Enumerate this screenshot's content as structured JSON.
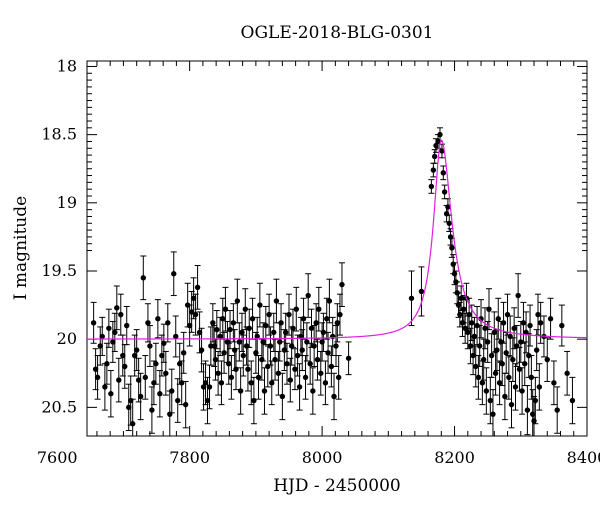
{
  "chart_data": {
    "type": "scatter",
    "title": "OGLE-2018-BLG-0301",
    "xlabel": "HJD - 2450000",
    "ylabel": "I magnitude",
    "xlim": [
      7645,
      8400
    ],
    "ylim": [
      20.71,
      17.96
    ],
    "y_inverted": true,
    "x_ticks": [
      7600,
      7800,
      8000,
      8200,
      8400
    ],
    "x_tick_labels": [
      "7600",
      "7800",
      "8000",
      "8200",
      "8400"
    ],
    "y_ticks": [
      18,
      18.5,
      19,
      19.5,
      20,
      20.5
    ],
    "y_tick_labels": [
      "18",
      "18.5",
      "19",
      "19.5",
      "20",
      "20.5"
    ],
    "grid": false,
    "colors": {
      "points": "#000000",
      "model": "#e020e0"
    },
    "series": [
      {
        "kind": "points_with_errorbars",
        "points": [
          [
            7655,
            19.88,
            0.15
          ],
          [
            7658,
            20.22,
            0.15
          ],
          [
            7661,
            20.28,
            0.16
          ],
          [
            7665,
            20.05,
            0.14
          ],
          [
            7668,
            19.98,
            0.14
          ],
          [
            7672,
            20.35,
            0.17
          ],
          [
            7675,
            20.18,
            0.15
          ],
          [
            7678,
            19.92,
            0.14
          ],
          [
            7681,
            20.4,
            0.17
          ],
          [
            7684,
            20.02,
            0.15
          ],
          [
            7687,
            19.95,
            0.14
          ],
          [
            7690,
            19.77,
            0.16
          ],
          [
            7693,
            20.3,
            0.16
          ],
          [
            7696,
            19.82,
            0.15
          ],
          [
            7699,
            20.12,
            0.15
          ],
          [
            7702,
            20.2,
            0.16
          ],
          [
            7705,
            19.9,
            0.14
          ],
          [
            7708,
            20.5,
            0.17
          ],
          [
            7711,
            20.45,
            0.18
          ],
          [
            7714,
            20.62,
            0.18
          ],
          [
            7717,
            20.12,
            0.15
          ],
          [
            7720,
            20.08,
            0.15
          ],
          [
            7723,
            20.3,
            0.16
          ],
          [
            7726,
            20.42,
            0.17
          ],
          [
            7730,
            19.55,
            0.16
          ],
          [
            7733,
            20.28,
            0.16
          ],
          [
            7737,
            19.88,
            0.14
          ],
          [
            7740,
            20.05,
            0.15
          ],
          [
            7743,
            20.52,
            0.17
          ],
          [
            7746,
            20.32,
            0.16
          ],
          [
            7749,
            20.18,
            0.15
          ],
          [
            7752,
            19.85,
            0.14
          ],
          [
            7755,
            20.4,
            0.17
          ],
          [
            7758,
            20.12,
            0.15
          ],
          [
            7761,
            20.03,
            0.14
          ],
          [
            7764,
            20.25,
            0.16
          ],
          [
            7767,
            19.88,
            0.14
          ],
          [
            7770,
            20.55,
            0.17
          ],
          [
            7773,
            20.38,
            0.16
          ],
          [
            7776,
            19.52,
            0.16
          ],
          [
            7779,
            19.98,
            0.15
          ],
          [
            7782,
            20.45,
            0.16
          ],
          [
            7785,
            20.18,
            0.15
          ],
          [
            7788,
            20.32,
            0.16
          ],
          [
            7791,
            20.1,
            0.15
          ],
          [
            7794,
            20.48,
            0.17
          ],
          [
            7797,
            19.75,
            0.16
          ],
          [
            7800,
            19.9,
            0.15
          ],
          [
            7803,
            19.8,
            0.15
          ],
          [
            7806,
            19.7,
            0.15
          ],
          [
            7809,
            19.82,
            0.15
          ],
          [
            7812,
            19.62,
            0.16
          ],
          [
            7815,
            19.95,
            0.15
          ],
          [
            7818,
            20.08,
            0.16
          ],
          [
            7821,
            20.35,
            0.17
          ],
          [
            7824,
            20.32,
            0.16
          ],
          [
            7827,
            20.45,
            0.17
          ],
          [
            7830,
            20.35,
            0.16
          ],
          [
            7832,
            20.05,
            0.14
          ],
          [
            7835,
            19.88,
            0.14
          ],
          [
            7837,
            20.05,
            0.15
          ],
          [
            7839,
            20.15,
            0.15
          ],
          [
            7841,
            19.93,
            0.14
          ],
          [
            7843,
            20.25,
            0.16
          ],
          [
            7846,
            19.98,
            0.14
          ],
          [
            7848,
            20.32,
            0.16
          ],
          [
            7850,
            19.85,
            0.15
          ],
          [
            7852,
            20.1,
            0.15
          ],
          [
            7854,
            19.78,
            0.16
          ],
          [
            7857,
            20.02,
            0.15
          ],
          [
            7859,
            20.18,
            0.15
          ],
          [
            7861,
            19.93,
            0.14
          ],
          [
            7863,
            20.28,
            0.16
          ],
          [
            7866,
            19.88,
            0.14
          ],
          [
            7868,
            20.08,
            0.15
          ],
          [
            7870,
            20.22,
            0.15
          ],
          [
            7872,
            19.72,
            0.16
          ],
          [
            7875,
            20.02,
            0.14
          ],
          [
            7877,
            20.38,
            0.17
          ],
          [
            7879,
            19.95,
            0.14
          ],
          [
            7881,
            20.12,
            0.15
          ],
          [
            7884,
            19.78,
            0.15
          ],
          [
            7886,
            20.05,
            0.14
          ],
          [
            7888,
            20.22,
            0.16
          ],
          [
            7890,
            19.92,
            0.14
          ],
          [
            7893,
            20.32,
            0.16
          ],
          [
            7895,
            19.85,
            0.15
          ],
          [
            7897,
            20.45,
            0.17
          ],
          [
            7900,
            20.1,
            0.15
          ],
          [
            7902,
            19.98,
            0.14
          ],
          [
            7904,
            20.28,
            0.16
          ],
          [
            7906,
            19.75,
            0.16
          ],
          [
            7909,
            20.15,
            0.15
          ],
          [
            7911,
            20.02,
            0.14
          ],
          [
            7913,
            20.38,
            0.17
          ],
          [
            7915,
            19.9,
            0.14
          ],
          [
            7918,
            20.2,
            0.15
          ],
          [
            7920,
            19.82,
            0.15
          ],
          [
            7922,
            20.05,
            0.14
          ],
          [
            7924,
            20.32,
            0.16
          ],
          [
            7927,
            19.95,
            0.14
          ],
          [
            7929,
            20.15,
            0.15
          ],
          [
            7931,
            19.72,
            0.16
          ],
          [
            7934,
            20.25,
            0.16
          ],
          [
            7936,
            20.02,
            0.14
          ],
          [
            7938,
            19.88,
            0.14
          ],
          [
            7940,
            20.42,
            0.17
          ],
          [
            7943,
            20.08,
            0.15
          ],
          [
            7945,
            19.95,
            0.14
          ],
          [
            7947,
            20.18,
            0.15
          ],
          [
            7950,
            19.82,
            0.15
          ],
          [
            7952,
            20.3,
            0.16
          ],
          [
            7954,
            20.05,
            0.14
          ],
          [
            7956,
            19.92,
            0.14
          ],
          [
            7959,
            20.22,
            0.15
          ],
          [
            7961,
            19.78,
            0.16
          ],
          [
            7963,
            20.12,
            0.15
          ],
          [
            7966,
            20.35,
            0.17
          ],
          [
            7968,
            19.98,
            0.14
          ],
          [
            7970,
            20.08,
            0.15
          ],
          [
            7972,
            19.85,
            0.15
          ],
          [
            7975,
            20.28,
            0.16
          ],
          [
            7977,
            20.02,
            0.14
          ],
          [
            7979,
            19.68,
            0.16
          ],
          [
            7982,
            20.18,
            0.15
          ],
          [
            7984,
            19.92,
            0.14
          ],
          [
            7986,
            20.38,
            0.17
          ],
          [
            7988,
            20.05,
            0.15
          ],
          [
            7991,
            19.88,
            0.14
          ],
          [
            7993,
            20.15,
            0.15
          ],
          [
            7995,
            19.78,
            0.16
          ],
          [
            7998,
            20.25,
            0.16
          ],
          [
            8000,
            20.02,
            0.14
          ],
          [
            8002,
            19.95,
            0.14
          ],
          [
            8005,
            20.32,
            0.16
          ],
          [
            8007,
            19.85,
            0.15
          ],
          [
            8009,
            20.1,
            0.15
          ],
          [
            8011,
            19.72,
            0.16
          ],
          [
            8014,
            20.2,
            0.15
          ],
          [
            8016,
            19.98,
            0.14
          ],
          [
            8018,
            20.42,
            0.17
          ],
          [
            8021,
            20.05,
            0.15
          ],
          [
            8023,
            19.88,
            0.14
          ],
          [
            8025,
            20.28,
            0.16
          ],
          [
            8027,
            19.82,
            0.15
          ],
          [
            8030,
            19.6,
            0.16
          ],
          [
            8040,
            20.14,
            0.12
          ],
          [
            8135,
            19.7,
            0.2
          ],
          [
            8150,
            19.65,
            0.18
          ],
          [
            8165,
            18.88,
            0.05
          ],
          [
            8168,
            18.76,
            0.05
          ],
          [
            8170,
            18.66,
            0.05
          ],
          [
            8172,
            18.58,
            0.05
          ],
          [
            8175,
            18.55,
            0.05
          ],
          [
            8178,
            18.5,
            0.05
          ],
          [
            8181,
            18.62,
            0.05
          ],
          [
            8183,
            18.78,
            0.05
          ],
          [
            8185,
            18.92,
            0.05
          ],
          [
            8188,
            19.08,
            0.06
          ],
          [
            8190,
            19.03,
            0.06
          ],
          [
            8192,
            19.15,
            0.06
          ],
          [
            8194,
            19.25,
            0.06
          ],
          [
            8196,
            19.33,
            0.07
          ],
          [
            8198,
            19.45,
            0.07
          ],
          [
            8200,
            19.52,
            0.08
          ],
          [
            8202,
            19.58,
            0.08
          ],
          [
            8204,
            19.66,
            0.08
          ],
          [
            8206,
            19.75,
            0.09
          ],
          [
            8208,
            19.82,
            0.09
          ],
          [
            8210,
            19.7,
            0.09
          ],
          [
            8212,
            19.88,
            0.1
          ],
          [
            8214,
            19.78,
            0.1
          ],
          [
            8216,
            19.92,
            0.11
          ],
          [
            8218,
            19.7,
            0.11
          ],
          [
            8220,
            19.95,
            0.12
          ],
          [
            8222,
            19.82,
            0.12
          ],
          [
            8224,
            20.05,
            0.13
          ],
          [
            8226,
            19.88,
            0.13
          ],
          [
            8228,
            20.12,
            0.14
          ],
          [
            8230,
            19.98,
            0.14
          ],
          [
            8232,
            20.2,
            0.15
          ],
          [
            8234,
            19.9,
            0.14
          ],
          [
            8236,
            20.28,
            0.16
          ],
          [
            8238,
            20.05,
            0.15
          ],
          [
            8240,
            19.85,
            0.14
          ],
          [
            8242,
            20.32,
            0.16
          ],
          [
            8244,
            20.15,
            0.15
          ],
          [
            8246,
            19.92,
            0.15
          ],
          [
            8248,
            20.38,
            0.17
          ],
          [
            8250,
            20.02,
            0.15
          ],
          [
            8252,
            19.78,
            0.15
          ],
          [
            8254,
            20.45,
            0.17
          ],
          [
            8256,
            20.12,
            0.16
          ],
          [
            8258,
            20.55,
            0.18
          ],
          [
            8260,
            19.95,
            0.15
          ],
          [
            8262,
            20.25,
            0.16
          ],
          [
            8264,
            20.08,
            0.15
          ],
          [
            8266,
            19.85,
            0.15
          ],
          [
            8268,
            20.32,
            0.16
          ],
          [
            8270,
            20.02,
            0.15
          ],
          [
            8272,
            20.18,
            0.16
          ],
          [
            8274,
            19.88,
            0.15
          ],
          [
            8276,
            20.42,
            0.17
          ],
          [
            8278,
            20.1,
            0.15
          ],
          [
            8280,
            19.82,
            0.15
          ],
          [
            8282,
            20.28,
            0.16
          ],
          [
            8284,
            19.98,
            0.15
          ],
          [
            8286,
            20.48,
            0.17
          ],
          [
            8288,
            20.15,
            0.16
          ],
          [
            8290,
            19.92,
            0.15
          ],
          [
            8292,
            20.35,
            0.17
          ],
          [
            8294,
            20.05,
            0.15
          ],
          [
            8296,
            19.68,
            0.16
          ],
          [
            8298,
            20.22,
            0.16
          ],
          [
            8300,
            20.02,
            0.15
          ],
          [
            8302,
            20.38,
            0.17
          ],
          [
            8304,
            19.88,
            0.15
          ],
          [
            8306,
            20.18,
            0.16
          ],
          [
            8308,
            19.95,
            0.15
          ],
          [
            8310,
            20.52,
            0.18
          ],
          [
            8312,
            20.12,
            0.16
          ],
          [
            8314,
            19.9,
            0.15
          ],
          [
            8316,
            20.28,
            0.16
          ],
          [
            8318,
            20.55,
            0.18
          ],
          [
            8320,
            20.6,
            0.18
          ],
          [
            8322,
            20.45,
            0.17
          ],
          [
            8324,
            20.08,
            0.15
          ],
          [
            8326,
            19.82,
            0.15
          ],
          [
            8328,
            20.35,
            0.17
          ],
          [
            8330,
            19.88,
            0.15
          ],
          [
            8335,
            19.98,
            0.15
          ],
          [
            8340,
            20.15,
            0.16
          ],
          [
            8345,
            19.85,
            0.15
          ],
          [
            8350,
            20.32,
            0.16
          ],
          [
            8355,
            20.52,
            0.17
          ],
          [
            8362,
            19.9,
            0.15
          ],
          [
            8370,
            20.25,
            0.16
          ],
          [
            8378,
            20.45,
            0.17
          ]
        ]
      },
      {
        "kind": "model_curve",
        "model": {
          "baseline": 20.0,
          "peak": 18.54,
          "t0": 8180,
          "tE": 22,
          "rise_width": 18,
          "decay_tail": 20.0
        }
      }
    ]
  }
}
